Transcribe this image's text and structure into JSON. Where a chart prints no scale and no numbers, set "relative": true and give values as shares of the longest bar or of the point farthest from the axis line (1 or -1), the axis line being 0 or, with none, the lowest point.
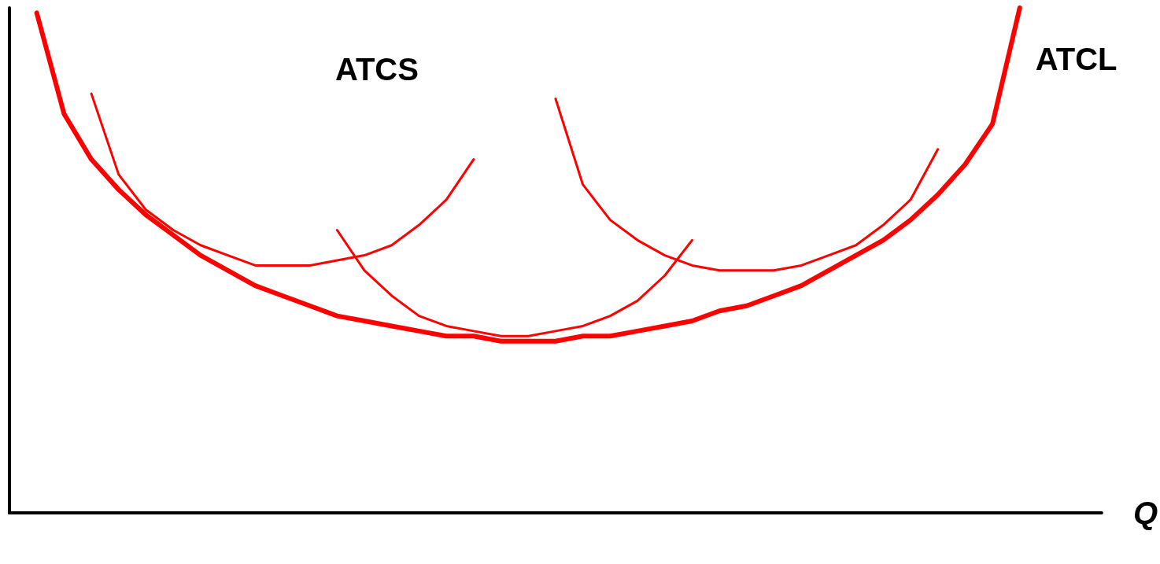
{
  "chart_data": {
    "type": "line",
    "relative": true,
    "xlabel": "Q",
    "annotations": [
      "ATCS"
    ],
    "categories": [
      null,
      null,
      null,
      null,
      null,
      null,
      null,
      null,
      null,
      null,
      null,
      null,
      null,
      null,
      null,
      null,
      null,
      null,
      null,
      null,
      null,
      null,
      null,
      null,
      null,
      null,
      null,
      null,
      null,
      null,
      null,
      null,
      null,
      null,
      null,
      null,
      null,
      null,
      null,
      null,
      null
    ],
    "series": [
      {
        "name": "ATCL",
        "color": "#ff0000",
        "values": [
          null,
          0.99,
          0.79,
          0.7,
          0.64,
          0.59,
          0.55,
          0.51,
          0.48,
          0.45,
          0.43,
          0.41,
          0.39,
          0.38,
          0.37,
          0.36,
          0.35,
          0.35,
          0.34,
          0.34,
          0.34,
          0.35,
          0.35,
          0.36,
          0.37,
          0.38,
          0.4,
          0.41,
          0.43,
          0.45,
          0.48,
          0.51,
          0.54,
          0.58,
          0.63,
          0.69,
          0.77,
          1.0,
          null,
          null,
          null
        ]
      },
      {
        "color": "#ff0000",
        "values": [
          null,
          null,
          null,
          0.83,
          0.67,
          0.6,
          0.56,
          0.53,
          0.51,
          0.49,
          0.49,
          0.49,
          0.5,
          0.51,
          0.53,
          0.57,
          0.62,
          0.7,
          null,
          null,
          null,
          null,
          null,
          null,
          null,
          null,
          null,
          null,
          null,
          null,
          null,
          null,
          null,
          null,
          null,
          null,
          null,
          null,
          null,
          null,
          null
        ]
      },
      {
        "color": "#ff0000",
        "values": [
          null,
          null,
          null,
          null,
          null,
          null,
          null,
          null,
          null,
          null,
          null,
          null,
          0.56,
          0.48,
          0.43,
          0.39,
          0.37,
          0.36,
          0.35,
          0.35,
          0.36,
          0.37,
          0.39,
          0.42,
          0.47,
          0.54,
          null,
          null,
          null,
          null,
          null,
          null,
          null,
          null,
          null,
          null,
          null,
          null,
          null,
          null,
          null
        ]
      },
      {
        "color": "#ff0000",
        "values": [
          null,
          null,
          null,
          null,
          null,
          null,
          null,
          null,
          null,
          null,
          null,
          null,
          null,
          null,
          null,
          null,
          null,
          null,
          null,
          null,
          0.82,
          0.65,
          0.58,
          0.54,
          0.51,
          0.49,
          0.48,
          0.48,
          0.48,
          0.49,
          0.51,
          0.53,
          0.57,
          0.62,
          0.72,
          null,
          null,
          null,
          null,
          null,
          null
        ]
      }
    ]
  }
}
